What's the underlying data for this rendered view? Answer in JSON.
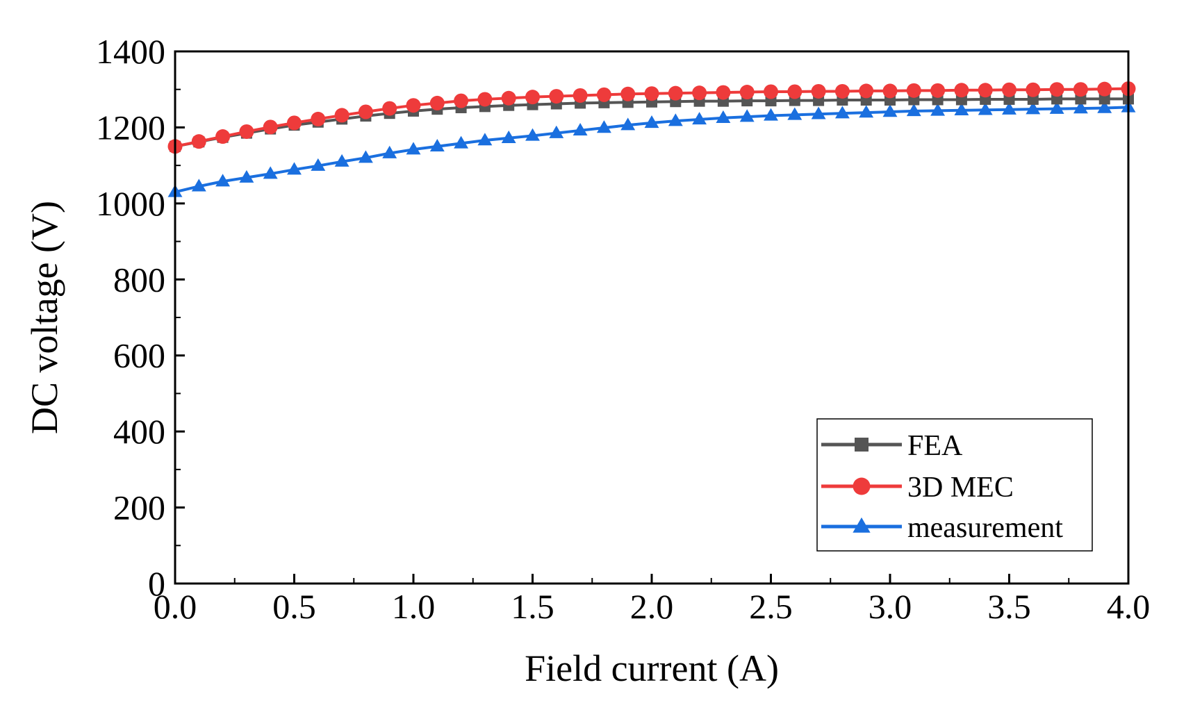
{
  "chart_data": {
    "type": "line",
    "title": "",
    "xlabel": "Field current (A)",
    "ylabel": "DC voltage (V)",
    "xlim": [
      0,
      4.0
    ],
    "ylim": [
      0,
      1400
    ],
    "xticks": [
      "0.0",
      "0.5",
      "1.0",
      "1.5",
      "2.0",
      "2.5",
      "3.0",
      "3.5",
      "4.0"
    ],
    "yticks": [
      "0",
      "200",
      "400",
      "600",
      "800",
      "1000",
      "1200",
      "1400"
    ],
    "grid": false,
    "legend_position": "bottom-right",
    "x": [
      0.0,
      0.1,
      0.2,
      0.3,
      0.4,
      0.5,
      0.6,
      0.7,
      0.8,
      0.9,
      1.0,
      1.1,
      1.2,
      1.3,
      1.4,
      1.5,
      1.6,
      1.7,
      1.8,
      1.9,
      2.0,
      2.1,
      2.2,
      2.3,
      2.4,
      2.5,
      2.6,
      2.7,
      2.8,
      2.9,
      3.0,
      3.1,
      3.2,
      3.3,
      3.4,
      3.5,
      3.6,
      3.7,
      3.8,
      3.9,
      4.0
    ],
    "series": [
      {
        "name": "FEA",
        "color": "#555555",
        "marker": "square",
        "values": [
          1150,
          1162,
          1174,
          1185,
          1196,
          1206,
          1214,
          1222,
          1230,
          1237,
          1243,
          1248,
          1252,
          1255,
          1258,
          1260,
          1262,
          1264,
          1265,
          1266,
          1267,
          1268,
          1269,
          1269,
          1270,
          1270,
          1271,
          1271,
          1272,
          1272,
          1272,
          1273,
          1273,
          1273,
          1274,
          1274,
          1274,
          1275,
          1275,
          1275,
          1275
        ]
      },
      {
        "name": "3D MEC",
        "color": "#ee3b3b",
        "marker": "circle",
        "values": [
          1150,
          1163,
          1176,
          1189,
          1201,
          1212,
          1222,
          1232,
          1241,
          1250,
          1258,
          1264,
          1270,
          1274,
          1277,
          1280,
          1282,
          1284,
          1286,
          1288,
          1289,
          1290,
          1291,
          1292,
          1293,
          1294,
          1294,
          1295,
          1295,
          1296,
          1296,
          1297,
          1297,
          1298,
          1298,
          1299,
          1299,
          1300,
          1300,
          1301,
          1302
        ]
      },
      {
        "name": "measurement",
        "color": "#1a6fdf",
        "marker": "triangle",
        "values": [
          1030,
          1045,
          1058,
          1068,
          1078,
          1089,
          1099,
          1110,
          1120,
          1132,
          1142,
          1150,
          1158,
          1166,
          1172,
          1178,
          1185,
          1192,
          1199,
          1206,
          1212,
          1217,
          1221,
          1225,
          1228,
          1231,
          1233,
          1235,
          1237,
          1239,
          1241,
          1243,
          1244,
          1245,
          1246,
          1247,
          1248,
          1249,
          1250,
          1251,
          1253
        ]
      }
    ]
  }
}
